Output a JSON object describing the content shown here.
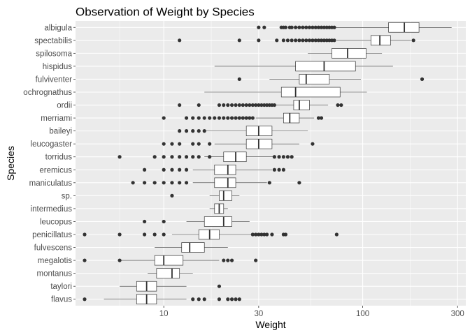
{
  "chart_data": {
    "type": "boxplot",
    "title": "Observation of Weight by Species",
    "xlabel": "Weight",
    "ylabel": "Species",
    "x_scale": "log10",
    "xlim": [
      3.6,
      330
    ],
    "x_ticks": [
      10,
      30,
      100,
      300
    ],
    "x_tick_labels": [
      "10",
      "30",
      "100",
      "300"
    ],
    "grid": true,
    "legend": "none",
    "colors": {
      "panel": "#ebebeb",
      "grid": "#ffffff",
      "box_fill": "#ffffff",
      "box_line": "#333333",
      "outlier": "#333333"
    },
    "series": [
      {
        "name": "albigula",
        "whisker_low": 45,
        "q1": 135,
        "median": 162,
        "q3": 192,
        "whisker_high": 280,
        "outliers": [
          30,
          32,
          39,
          40,
          41,
          43,
          44,
          46,
          48,
          50,
          52,
          54,
          56,
          58,
          60,
          62,
          64,
          66,
          68,
          70,
          72
        ]
      },
      {
        "name": "spectabilis",
        "whisker_low": 74,
        "q1": 110,
        "median": 122,
        "q3": 138,
        "whisker_high": 175,
        "outliers": [
          12,
          24,
          30,
          37,
          40,
          42,
          44,
          46,
          48,
          50,
          52,
          54,
          56,
          58,
          60,
          62,
          64,
          66,
          68,
          70,
          72,
          180
        ]
      },
      {
        "name": "spilosoma",
        "whisker_low": 53,
        "q1": 70,
        "median": 84,
        "q3": 104,
        "whisker_high": 125,
        "outliers": []
      },
      {
        "name": "hispidus",
        "whisker_low": 18,
        "q1": 46,
        "median": 64,
        "q3": 92,
        "whisker_high": 142,
        "outliers": []
      },
      {
        "name": "fulviventer",
        "whisker_low": 34,
        "q1": 48,
        "median": 52,
        "q3": 68,
        "whisker_high": 98,
        "outliers": [
          24,
          199
        ]
      },
      {
        "name": "ochrognathus",
        "whisker_low": 16,
        "q1": 39,
        "median": 46,
        "q3": 77,
        "whisker_high": 105,
        "outliers": []
      },
      {
        "name": "ordii",
        "whisker_low": 33,
        "q1": 45,
        "median": 48,
        "q3": 54,
        "whisker_high": 67,
        "outliers": [
          12,
          15,
          19,
          20,
          21,
          22,
          23,
          24,
          25,
          26,
          27,
          28,
          29,
          30,
          31,
          32,
          33,
          34,
          35,
          36,
          75,
          78
        ]
      },
      {
        "name": "merriami",
        "whisker_low": 29,
        "q1": 40,
        "median": 43,
        "q3": 48,
        "whisker_high": 57,
        "outliers": [
          10,
          13,
          14,
          15,
          16,
          17,
          18,
          19,
          20,
          21,
          22,
          23,
          24,
          25,
          26,
          27,
          28,
          60,
          62
        ]
      },
      {
        "name": "baileyi",
        "whisker_low": 16,
        "q1": 26,
        "median": 30,
        "q3": 35,
        "whisker_high": 53,
        "outliers": [
          12,
          13,
          14,
          15,
          16
        ]
      },
      {
        "name": "leucogaster",
        "whisker_low": 18,
        "q1": 26,
        "median": 30,
        "q3": 35,
        "whisker_high": 48,
        "outliers": [
          10,
          11,
          12,
          14,
          15,
          17,
          56
        ]
      },
      {
        "name": "torridus",
        "whisker_low": 16,
        "q1": 20,
        "median": 23,
        "q3": 26,
        "whisker_high": 36,
        "outliers": [
          6,
          9,
          10,
          11,
          12,
          13,
          14,
          15,
          17,
          36,
          38,
          40,
          42,
          44
        ]
      },
      {
        "name": "eremicus",
        "whisker_low": 14,
        "q1": 18,
        "median": 21,
        "q3": 23,
        "whisker_high": 35,
        "outliers": [
          8,
          10,
          11,
          12,
          13,
          36,
          38,
          40
        ]
      },
      {
        "name": "maniculatus",
        "whisker_low": 14,
        "q1": 18,
        "median": 21,
        "q3": 23,
        "whisker_high": 33,
        "outliers": [
          7,
          8,
          9,
          10,
          11,
          12,
          13,
          34,
          48
        ]
      },
      {
        "name": "sp.",
        "whisker_low": 17,
        "q1": 19,
        "median": 20,
        "q3": 22,
        "whisker_high": 24,
        "outliers": [
          11
        ]
      },
      {
        "name": "intermedius",
        "whisker_low": 17,
        "q1": 18,
        "median": 19,
        "q3": 20,
        "whisker_high": 21,
        "outliers": []
      },
      {
        "name": "leucopus",
        "whisker_low": 13,
        "q1": 16,
        "median": 20,
        "q3": 22,
        "whisker_high": 27,
        "outliers": [
          8,
          10
        ]
      },
      {
        "name": "penicillatus",
        "whisker_low": 11,
        "q1": 15,
        "median": 17,
        "q3": 19,
        "whisker_high": 28,
        "outliers": [
          4,
          6,
          8,
          9,
          10,
          28,
          29,
          30,
          31,
          32,
          33,
          35,
          40,
          41,
          74
        ]
      },
      {
        "name": "fulvescens",
        "whisker_low": 9,
        "q1": 12.3,
        "median": 13.5,
        "q3": 16,
        "whisker_high": 21,
        "outliers": []
      },
      {
        "name": "megalotis",
        "whisker_low": 6,
        "q1": 9,
        "median": 10,
        "q3": 12.5,
        "whisker_high": 19,
        "outliers": [
          4,
          6,
          20,
          21,
          22,
          29
        ]
      },
      {
        "name": "montanus",
        "whisker_low": 8.3,
        "q1": 9.2,
        "median": 11,
        "q3": 12,
        "whisker_high": 14,
        "outliers": []
      },
      {
        "name": "taylori",
        "whisker_low": 6,
        "q1": 7.3,
        "median": 8.2,
        "q3": 9.2,
        "whisker_high": 13,
        "outliers": [
          19
        ]
      },
      {
        "name": "flavus",
        "whisker_low": 5,
        "q1": 7.3,
        "median": 8.2,
        "q3": 9.2,
        "whisker_high": 13,
        "outliers": [
          4,
          14,
          15,
          16,
          19,
          21,
          22,
          23,
          24
        ]
      }
    ]
  }
}
